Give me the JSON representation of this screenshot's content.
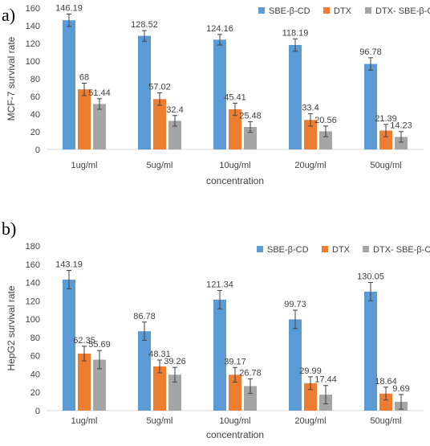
{
  "panels": [
    {
      "label": "a)"
    },
    {
      "label": "b)"
    }
  ],
  "chart_data": [
    {
      "type": "bar",
      "panel": "a)",
      "title": "",
      "xlabel": "concentration",
      "ylabel": "MCF-7 survival rate",
      "ylim": [
        0,
        160
      ],
      "yticks": [
        0,
        20,
        40,
        60,
        80,
        100,
        120,
        140,
        160
      ],
      "categories": [
        "1ug/ml",
        "5ug/ml",
        "10ug/ml",
        "20ug/ml",
        "50ug/ml"
      ],
      "grid": false,
      "legend_position": "top-right",
      "series": [
        {
          "name": "SBE-β-CD",
          "color": "#5B9BD5",
          "values": [
            146.19,
            128.52,
            124.16,
            118.19,
            96.78
          ],
          "labels": [
            "146.19",
            "128.52",
            "124.16",
            "118.19",
            "96.78"
          ]
        },
        {
          "name": "DTX",
          "color": "#ED7D31",
          "values": [
            68,
            57.02,
            45.41,
            33.4,
            21.39
          ],
          "labels": [
            "68",
            "57.02",
            "45.41",
            "33.4",
            "21.39"
          ]
        },
        {
          "name": "DTX- SBE-β-CD",
          "color": "#A5A5A5",
          "values": [
            51.44,
            32.4,
            25.48,
            20.56,
            14.23
          ],
          "labels": [
            "51.44",
            "32.4",
            "25.48",
            "20.56",
            "14.23"
          ]
        }
      ],
      "error": [
        [
          7,
          6,
          6,
          7,
          7
        ],
        [
          7,
          7,
          7,
          7,
          7
        ],
        [
          6,
          6,
          6,
          6,
          6
        ]
      ]
    },
    {
      "type": "bar",
      "panel": "b)",
      "title": "",
      "xlabel": "concentration",
      "ylabel": "HepG2 survival rate",
      "ylim": [
        0,
        180
      ],
      "yticks": [
        0,
        20,
        40,
        60,
        80,
        100,
        120,
        140,
        160,
        180
      ],
      "categories": [
        "1ug/ml",
        "5ug/ml",
        "10ug/ml",
        "20ug/ml",
        "50ug/ml"
      ],
      "grid": false,
      "legend_position": "top-right",
      "series": [
        {
          "name": "SBE-β-CD",
          "color": "#5B9BD5",
          "values": [
            143.19,
            86.78,
            121.34,
            99.73,
            130.05
          ],
          "labels": [
            "143.19",
            "86.78",
            "121.34",
            "99.73",
            "130.05"
          ]
        },
        {
          "name": "DTX",
          "color": "#ED7D31",
          "values": [
            62.35,
            48.31,
            39.17,
            29.99,
            18.64
          ],
          "labels": [
            "62.35",
            "48.31",
            "39.17",
            "29.99",
            "18.64"
          ]
        },
        {
          "name": "DTX- SBE-β-CD",
          "color": "#A5A5A5",
          "values": [
            55.69,
            39.26,
            26.78,
            17.44,
            9.69
          ],
          "labels": [
            "55.69",
            "39.26",
            "26.78",
            "17.44",
            "9.69"
          ]
        }
      ],
      "error": [
        [
          10,
          10,
          10,
          10,
          10
        ],
        [
          8,
          7,
          8,
          7,
          7
        ],
        [
          10,
          8,
          8,
          10,
          8
        ]
      ]
    }
  ]
}
